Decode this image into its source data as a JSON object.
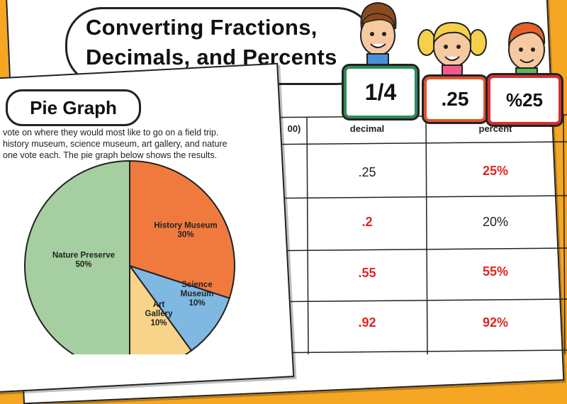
{
  "worksheet": {
    "title_line1": "Converting Fractions,",
    "title_line2": "Decimals, and Percents",
    "signs": [
      "1/4",
      ".25",
      "%25"
    ],
    "table": {
      "headers": [
        "00)",
        "decimal",
        "percent"
      ],
      "rows": [
        {
          "decimal": ".25",
          "decimal_color": "black",
          "percent": "25%",
          "percent_color": "red"
        },
        {
          "decimal": ".2",
          "decimal_color": "red",
          "percent": "20%",
          "percent_color": "black"
        },
        {
          "decimal": ".55",
          "decimal_color": "red",
          "percent": "55%",
          "percent_color": "red"
        },
        {
          "decimal": ".92",
          "decimal_color": "red",
          "percent": "92%",
          "percent_color": "red"
        }
      ]
    }
  },
  "pie_sheet": {
    "title": "Pie Graph",
    "description": [
      "vote on where they would most like to go on a field trip.",
      "history museum, science museum, art gallery, and nature",
      "one vote each.  The pie graph below shows the results."
    ]
  },
  "chart_data": {
    "type": "pie",
    "slices": [
      {
        "label_lines": [
          "History Museum",
          "30%"
        ],
        "value": 30,
        "color": "#F07A3E"
      },
      {
        "label_lines": [
          "Science",
          "Museum",
          "10%"
        ],
        "value": 10,
        "color": "#7FB8E0"
      },
      {
        "label_lines": [
          "Art",
          "Gallery",
          "10%"
        ],
        "value": 10,
        "color": "#F8D48A"
      },
      {
        "label_lines": [
          "Nature Preserve",
          "50%"
        ],
        "value": 50,
        "color": "#A5CFA0"
      }
    ]
  },
  "colors": {
    "background": "#F5A623",
    "red_answer": "#E02424"
  }
}
